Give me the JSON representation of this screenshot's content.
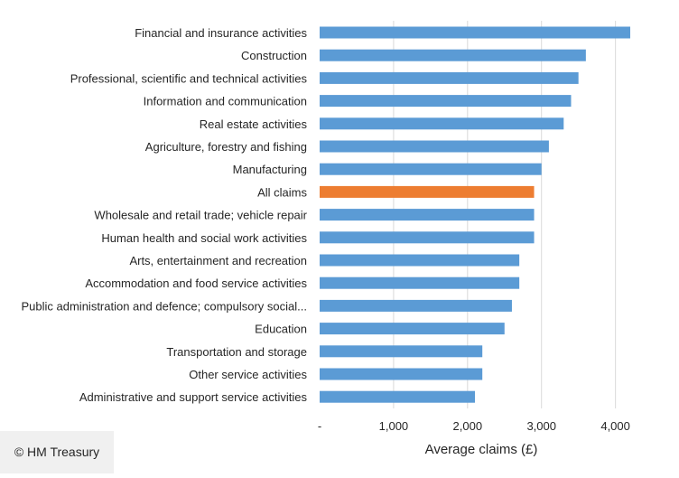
{
  "credit": "© HM Treasury",
  "colors": {
    "bar": "#5b9bd5",
    "highlight": "#ed7d31",
    "grid": "#d9d9d9",
    "text": "#262626"
  },
  "chart_data": {
    "type": "bar",
    "orientation": "horizontal",
    "xlabel": "Average claims (£)",
    "xlim": [
      0,
      4200
    ],
    "xticks": [
      0,
      1000,
      2000,
      3000,
      4000
    ],
    "xtick_labels": [
      "-",
      "1,000",
      "2,000",
      "3,000",
      "4,000"
    ],
    "grid": true,
    "legend": "none",
    "highlight_category": "All claims",
    "categories": [
      "Financial and insurance activities",
      "Construction",
      "Professional, scientific and technical activities",
      "Information and communication",
      "Real estate activities",
      "Agriculture, forestry and fishing",
      "Manufacturing",
      "All claims",
      "Wholesale and retail trade; vehicle repair",
      "Human health and social work activities",
      "Arts, entertainment and recreation",
      "Accommodation and food service activities",
      "Public administration and defence; compulsory social...",
      "Education",
      "Transportation and storage",
      "Other service activities",
      "Administrative and support service activities"
    ],
    "values": [
      4200,
      3600,
      3500,
      3400,
      3300,
      3100,
      3000,
      2900,
      2900,
      2900,
      2700,
      2700,
      2600,
      2500,
      2200,
      2200,
      2100
    ]
  }
}
